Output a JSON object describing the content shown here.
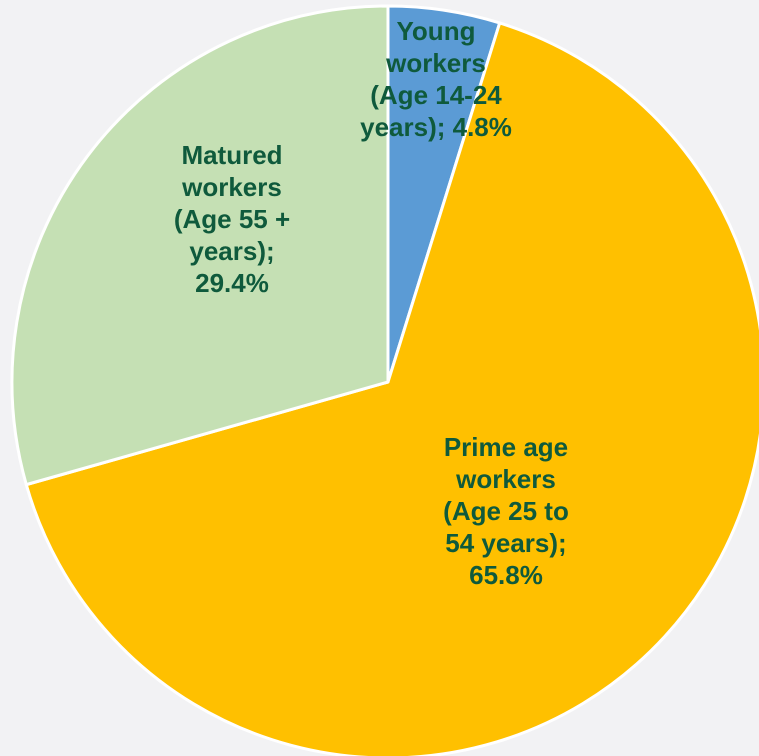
{
  "chart_data": {
    "type": "pie",
    "start_angle_deg": 0,
    "direction": "clockwise",
    "label_color": "#0f5a3c",
    "slice_border_color": "#ffffff",
    "slices": [
      {
        "label_lines": [
          "Young",
          "workers",
          "(Age 14-24",
          "years); 4.8%"
        ],
        "value": 4.8,
        "color": "#5b9bd5"
      },
      {
        "label_lines": [
          "Prime age",
          "workers",
          "(Age 25 to",
          "54 years);",
          "65.8%"
        ],
        "value": 65.8,
        "color": "#ffc000"
      },
      {
        "label_lines": [
          "Matured",
          "workers",
          "(Age 55 +",
          "years);",
          "29.4%"
        ],
        "value": 29.4,
        "color": "#c5e0b4"
      }
    ]
  }
}
